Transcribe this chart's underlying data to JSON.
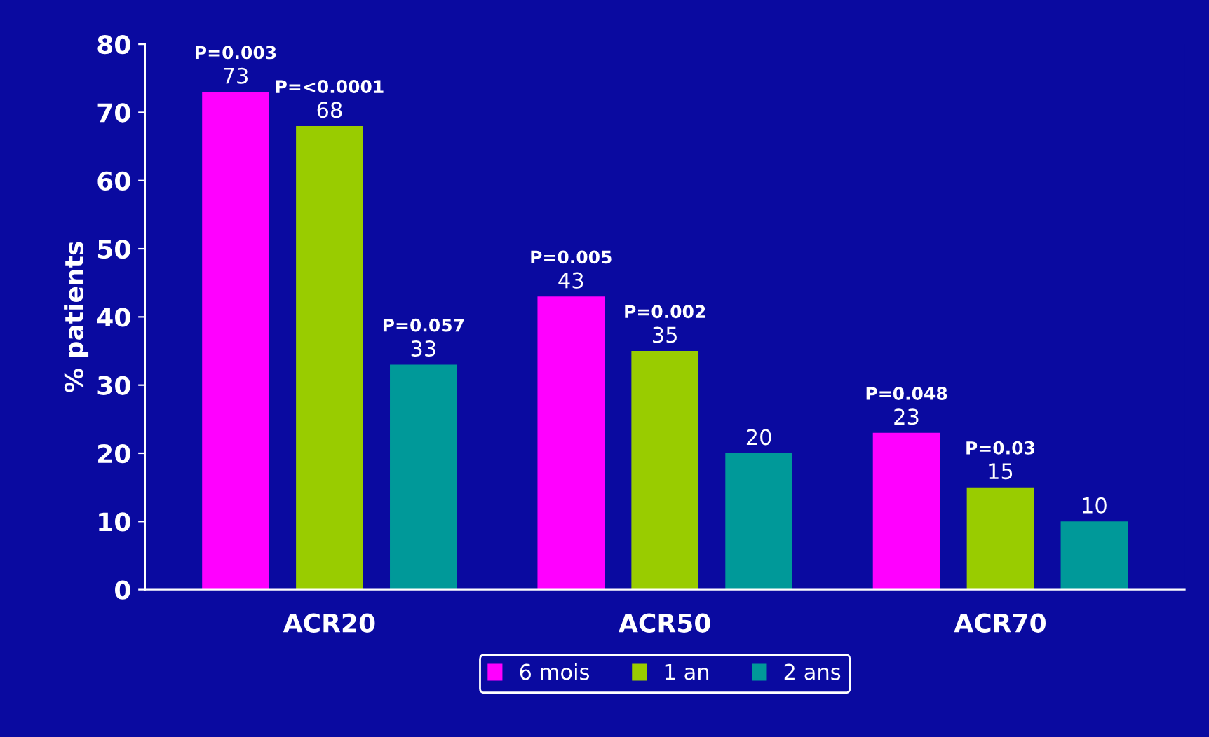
{
  "chart_data": {
    "type": "bar",
    "ylabel": "% patients",
    "categories": [
      "ACR20",
      "ACR50",
      "ACR70"
    ],
    "series": [
      {
        "name": "6 mois",
        "color": "#ff00ff",
        "values": [
          73,
          43,
          23
        ]
      },
      {
        "name": "1 an",
        "color": "#99cc00",
        "values": [
          68,
          35,
          15
        ]
      },
      {
        "name": "2 ans",
        "color": "#009999",
        "values": [
          33,
          20,
          10
        ]
      }
    ],
    "ylim": [
      0,
      80
    ],
    "yticks": [
      0,
      10,
      20,
      30,
      40,
      50,
      60,
      70,
      80
    ],
    "grid": false,
    "legend": "bottom",
    "data_labels": true,
    "annotations": [
      "P=0.003",
      "P=<0.0001",
      "P=0.057",
      "P=0.005",
      "P=0.002",
      "P=0.048",
      "P=0.03"
    ]
  }
}
